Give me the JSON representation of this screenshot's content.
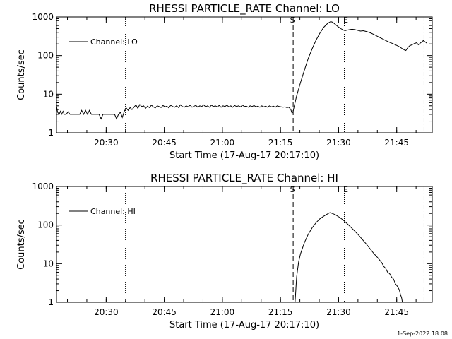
{
  "footer": "1-Sep-2022 18:08",
  "chart_data": [
    {
      "type": "line",
      "title": "RHESSI PARTICLE_RATE Channel: LO",
      "xlabel": "Start Time (17-Aug-17 20:17:10)",
      "ylabel": "Counts/sec",
      "yscale": "log",
      "x_unit": "minutes after 20:17:10",
      "xlim": [
        0,
        97
      ],
      "ylim": [
        1,
        1000
      ],
      "x_ticks": [
        {
          "x": 12.83,
          "label": "20:30"
        },
        {
          "x": 27.83,
          "label": "20:45"
        },
        {
          "x": 42.83,
          "label": "21:00"
        },
        {
          "x": 57.83,
          "label": "21:15"
        },
        {
          "x": 72.83,
          "label": "21:30"
        },
        {
          "x": 87.83,
          "label": "21:45"
        }
      ],
      "y_ticks": [
        {
          "y": 1,
          "label": "1"
        },
        {
          "y": 10,
          "label": "10"
        },
        {
          "y": 100,
          "label": "100"
        },
        {
          "y": 1000,
          "label": "1000"
        }
      ],
      "legend": {
        "label": "Channel: LO",
        "placement": "top-left"
      },
      "grid": false,
      "vlines": [
        {
          "x": 17.8,
          "style": "dotted",
          "label": ""
        },
        {
          "x": 61.1,
          "style": "dashed",
          "label": "S"
        },
        {
          "x": 74.3,
          "style": "dotted",
          "label": "E"
        },
        {
          "x": 94.9,
          "style": "dashdot",
          "label": ""
        }
      ],
      "series": [
        {
          "name": "Channel: LO",
          "points": [
            [
              0,
              5.0
            ],
            [
              0.3,
              3.4
            ],
            [
              0.7,
              3.0
            ],
            [
              1.0,
              3.6
            ],
            [
              1.3,
              3.0
            ],
            [
              1.7,
              3.6
            ],
            [
              2.0,
              3.0
            ],
            [
              2.5,
              3.0
            ],
            [
              3.0,
              3.5
            ],
            [
              3.5,
              3.0
            ],
            [
              4.0,
              3.0
            ],
            [
              5.0,
              3.0
            ],
            [
              6.0,
              3.0
            ],
            [
              6.5,
              3.8
            ],
            [
              7.0,
              3.0
            ],
            [
              7.5,
              3.8
            ],
            [
              8.0,
              3.0
            ],
            [
              8.5,
              3.8
            ],
            [
              9.0,
              3.0
            ],
            [
              10.0,
              3.0
            ],
            [
              11.0,
              3.0
            ],
            [
              11.5,
              2.3
            ],
            [
              12.0,
              3.0
            ],
            [
              13.0,
              3.0
            ],
            [
              14.0,
              3.0
            ],
            [
              15.0,
              3.0
            ],
            [
              15.5,
              2.3
            ],
            [
              16.0,
              3.0
            ],
            [
              16.5,
              3.4
            ],
            [
              17.0,
              2.5
            ],
            [
              17.5,
              3.6
            ],
            [
              18.0,
              4.4
            ],
            [
              18.5,
              3.8
            ],
            [
              19.0,
              4.5
            ],
            [
              19.5,
              4.0
            ],
            [
              20.0,
              4.6
            ],
            [
              20.5,
              5.3
            ],
            [
              21.0,
              4.3
            ],
            [
              21.5,
              5.4
            ],
            [
              22.0,
              4.8
            ],
            [
              22.5,
              5.0
            ],
            [
              23.0,
              4.3
            ],
            [
              23.5,
              4.9
            ],
            [
              24.0,
              4.5
            ],
            [
              24.5,
              5.2
            ],
            [
              25.0,
              4.7
            ],
            [
              25.5,
              4.4
            ],
            [
              26.0,
              5.0
            ],
            [
              26.5,
              4.8
            ],
            [
              27.0,
              4.5
            ],
            [
              27.5,
              5.1
            ],
            [
              28.0,
              4.7
            ],
            [
              28.5,
              4.9
            ],
            [
              29.0,
              4.4
            ],
            [
              29.5,
              5.2
            ],
            [
              30.0,
              4.8
            ],
            [
              30.5,
              4.6
            ],
            [
              31.0,
              5.0
            ],
            [
              31.5,
              4.5
            ],
            [
              32.0,
              5.3
            ],
            [
              32.5,
              4.8
            ],
            [
              33.0,
              4.6
            ],
            [
              33.5,
              5.0
            ],
            [
              34.0,
              4.7
            ],
            [
              34.5,
              5.2
            ],
            [
              35.0,
              4.6
            ],
            [
              35.5,
              4.9
            ],
            [
              36.0,
              5.1
            ],
            [
              36.5,
              4.6
            ],
            [
              37.0,
              5.0
            ],
            [
              37.5,
              4.8
            ],
            [
              38.0,
              5.3
            ],
            [
              38.5,
              4.7
            ],
            [
              39.0,
              5.0
            ],
            [
              39.5,
              4.6
            ],
            [
              40.0,
              5.2
            ],
            [
              40.5,
              4.8
            ],
            [
              41.0,
              5.0
            ],
            [
              41.5,
              4.7
            ],
            [
              42.0,
              5.1
            ],
            [
              42.5,
              4.6
            ],
            [
              43.0,
              5.0
            ],
            [
              43.5,
              4.8
            ],
            [
              44.0,
              5.2
            ],
            [
              44.5,
              4.7
            ],
            [
              45.0,
              5.0
            ],
            [
              45.5,
              4.6
            ],
            [
              46.0,
              5.1
            ],
            [
              46.5,
              4.8
            ],
            [
              47.0,
              5.0
            ],
            [
              47.5,
              4.7
            ],
            [
              48.0,
              5.2
            ],
            [
              48.5,
              4.8
            ],
            [
              49.0,
              4.9
            ],
            [
              49.5,
              4.6
            ],
            [
              50.0,
              5.0
            ],
            [
              50.5,
              4.8
            ],
            [
              51.0,
              5.1
            ],
            [
              51.5,
              4.7
            ],
            [
              52.0,
              4.9
            ],
            [
              52.5,
              4.6
            ],
            [
              53.0,
              5.0
            ],
            [
              53.5,
              4.7
            ],
            [
              54.0,
              4.9
            ],
            [
              54.5,
              4.6
            ],
            [
              55.0,
              5.0
            ],
            [
              55.5,
              4.7
            ],
            [
              56.0,
              4.9
            ],
            [
              56.5,
              4.6
            ],
            [
              57.0,
              5.0
            ],
            [
              57.5,
              4.8
            ],
            [
              58.0,
              4.7
            ],
            [
              58.5,
              4.6
            ],
            [
              59.0,
              4.7
            ],
            [
              59.5,
              4.5
            ],
            [
              60.0,
              4.6
            ],
            [
              60.5,
              4.0
            ],
            [
              60.8,
              3.2
            ],
            [
              61.1,
              3.6
            ],
            [
              61.3,
              4.5
            ],
            [
              61.5,
              5.5
            ],
            [
              62.0,
              9
            ],
            [
              63.0,
              20
            ],
            [
              64.0,
              42
            ],
            [
              65.0,
              85
            ],
            [
              66.0,
              150
            ],
            [
              67.0,
              250
            ],
            [
              68.0,
              380
            ],
            [
              69.0,
              540
            ],
            [
              70.0,
              680
            ],
            [
              70.8,
              760
            ],
            [
              71.3,
              730
            ],
            [
              72.0,
              640
            ],
            [
              72.7,
              560
            ],
            [
              73.4,
              500
            ],
            [
              74.0,
              460
            ],
            [
              74.5,
              440
            ],
            [
              75.0,
              455
            ],
            [
              75.7,
              470
            ],
            [
              76.3,
              480
            ],
            [
              77.0,
              470
            ],
            [
              77.8,
              450
            ],
            [
              78.5,
              430
            ],
            [
              79.2,
              440
            ],
            [
              80.0,
              420
            ],
            [
              81.0,
              390
            ],
            [
              82.0,
              350
            ],
            [
              83.0,
              310
            ],
            [
              84.0,
              275
            ],
            [
              85.0,
              245
            ],
            [
              86.0,
              220
            ],
            [
              87.0,
              200
            ],
            [
              88.0,
              180
            ],
            [
              88.7,
              165
            ],
            [
              89.3,
              150
            ],
            [
              89.8,
              140
            ],
            [
              90.2,
              135
            ],
            [
              90.7,
              160
            ],
            [
              91.2,
              180
            ],
            [
              91.8,
              190
            ],
            [
              92.4,
              205
            ],
            [
              93.0,
              215
            ],
            [
              93.4,
              190
            ],
            [
              93.8,
              205
            ],
            [
              94.3,
              225
            ],
            [
              94.7,
              245
            ],
            [
              95.2,
              225
            ],
            [
              95.6,
              210
            ]
          ]
        }
      ]
    },
    {
      "type": "line",
      "title": "RHESSI PARTICLE_RATE Channel: HI",
      "xlabel": "Start Time (17-Aug-17 20:17:10)",
      "ylabel": "Counts/sec",
      "yscale": "log",
      "x_unit": "minutes after 20:17:10",
      "xlim": [
        0,
        97
      ],
      "ylim": [
        1,
        1000
      ],
      "x_ticks": [
        {
          "x": 12.83,
          "label": "20:30"
        },
        {
          "x": 27.83,
          "label": "20:45"
        },
        {
          "x": 42.83,
          "label": "21:00"
        },
        {
          "x": 57.83,
          "label": "21:15"
        },
        {
          "x": 72.83,
          "label": "21:30"
        },
        {
          "x": 87.83,
          "label": "21:45"
        }
      ],
      "y_ticks": [
        {
          "y": 1,
          "label": "1"
        },
        {
          "y": 10,
          "label": "10"
        },
        {
          "y": 100,
          "label": "100"
        },
        {
          "y": 1000,
          "label": "1000"
        }
      ],
      "legend": {
        "label": "Channel: HI",
        "placement": "top-left"
      },
      "grid": false,
      "vlines": [
        {
          "x": 17.8,
          "style": "dotted",
          "label": ""
        },
        {
          "x": 61.1,
          "style": "dashed",
          "label": "S"
        },
        {
          "x": 74.3,
          "style": "dotted",
          "label": "E"
        },
        {
          "x": 94.9,
          "style": "dashdot",
          "label": ""
        }
      ],
      "series": [
        {
          "name": "Channel: HI",
          "points": [
            [
              61.6,
              1.0
            ],
            [
              62.0,
              4.5
            ],
            [
              62.5,
              11
            ],
            [
              63.0,
              18
            ],
            [
              64.0,
              35
            ],
            [
              65.0,
              58
            ],
            [
              66.0,
              85
            ],
            [
              67.0,
              115
            ],
            [
              68.0,
              145
            ],
            [
              69.0,
              170
            ],
            [
              70.0,
              195
            ],
            [
              70.6,
              210
            ],
            [
              71.2,
              200
            ],
            [
              72.0,
              185
            ],
            [
              73.0,
              160
            ],
            [
              74.0,
              135
            ],
            [
              75.0,
              110
            ],
            [
              76.0,
              88
            ],
            [
              77.0,
              70
            ],
            [
              78.0,
              55
            ],
            [
              79.0,
              42
            ],
            [
              80.0,
              32
            ],
            [
              81.0,
              24
            ],
            [
              82.0,
              18
            ],
            [
              83.0,
              14
            ],
            [
              84.0,
              10.5
            ],
            [
              84.5,
              8.5
            ],
            [
              85.0,
              7.5
            ],
            [
              85.5,
              6.0
            ],
            [
              86.0,
              5.5
            ],
            [
              86.5,
              4.5
            ],
            [
              87.0,
              4.0
            ],
            [
              87.5,
              3.0
            ],
            [
              88.0,
              2.6
            ],
            [
              88.5,
              2.1
            ],
            [
              88.8,
              1.6
            ],
            [
              89.1,
              1.3
            ],
            [
              89.3,
              1.0
            ]
          ]
        }
      ]
    }
  ]
}
